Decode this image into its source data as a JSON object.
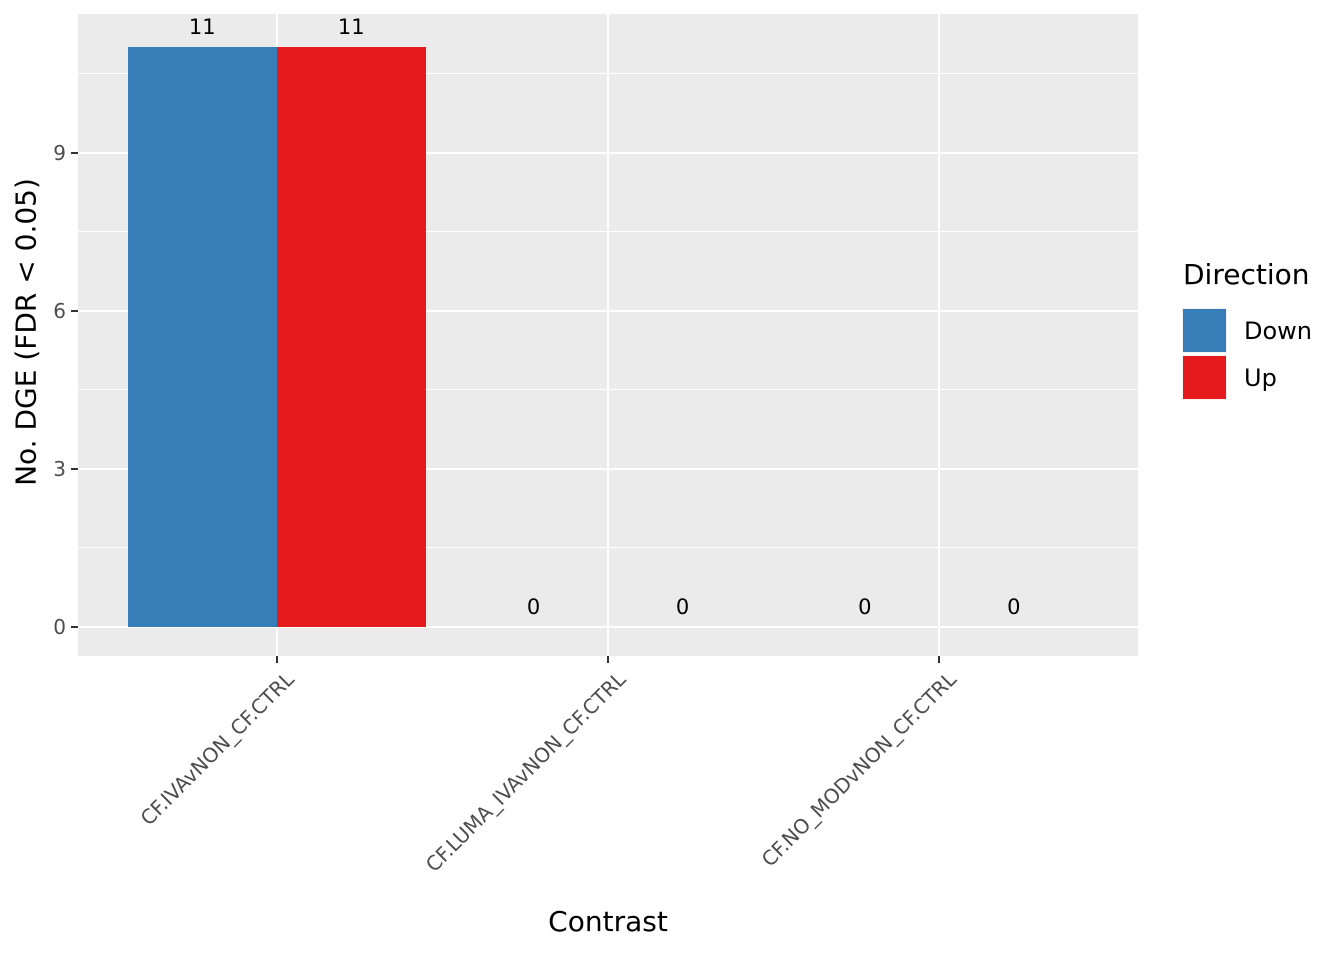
{
  "chart_data": {
    "type": "bar",
    "title": "",
    "xlabel": "Contrast",
    "ylabel": "No. DGE (FDR < 0.05)",
    "categories": [
      "CF.IVAvNON_CF.CTRL",
      "CF.LUMA_IVAvNON_CF.CTRL",
      "CF.NO_MODvNON_CF.CTRL"
    ],
    "series": [
      {
        "name": "Down",
        "color": "#377EB8",
        "values": [
          11,
          0,
          0
        ]
      },
      {
        "name": "Up",
        "color": "#E41A1C",
        "values": [
          11,
          0,
          0
        ]
      }
    ],
    "bar_value_labels": [
      [
        "11",
        "0",
        "0"
      ],
      [
        "11",
        "0",
        "0"
      ]
    ],
    "y_axis": {
      "major_ticks": [
        0,
        3,
        6,
        9
      ],
      "major_tick_labels": [
        "0",
        "3",
        "6",
        "9"
      ],
      "minor_ticks": [
        1.5,
        4.5,
        7.5,
        10.5
      ],
      "lim": [
        -0.55,
        11.55
      ]
    },
    "x_axis": {
      "label_angle_deg": 45
    },
    "legend": {
      "title": "Direction",
      "position": "right"
    },
    "grid": true,
    "style": {
      "panel_bg": "#EBEBEB",
      "grid_color": "#FFFFFF",
      "tick_label_color": "#4D4D4D",
      "tick_mark_color": "#333333",
      "text_color": "#000000",
      "down_color": "#377EB8",
      "up_color": "#E41A1C"
    }
  }
}
